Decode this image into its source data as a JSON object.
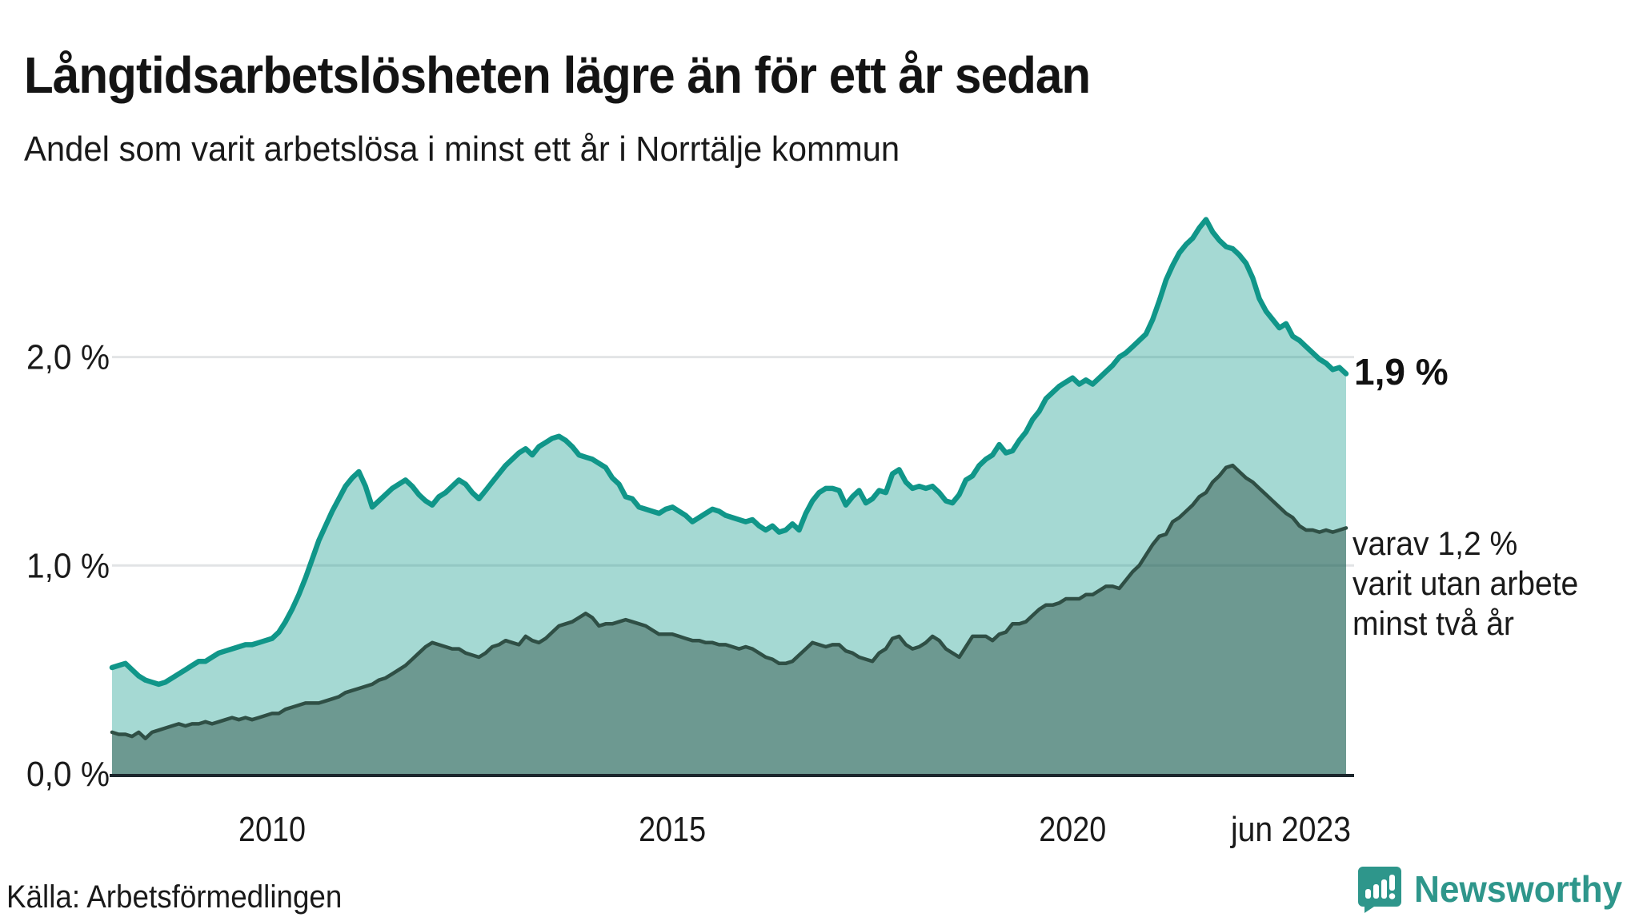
{
  "header": {
    "title": "Långtidsarbetslösheten lägre än för ett år sedan",
    "subtitle": "Andel som varit arbetslösa i minst ett år i Norrtälje kommun"
  },
  "footer": {
    "source": "Källa: Arbetsförmedlingen",
    "brand": "Newsworthy"
  },
  "colors": {
    "series_total_line": "#109689",
    "series_total_fill": "rgba(18,154,140,0.38)",
    "series_two_year_line": "#2f4f45",
    "series_two_year_fill": "rgba(30,64,54,0.42)",
    "grid_line": "#e2e4e6",
    "axis_line": "#1c262c",
    "brand_teal": "#2e968b",
    "text": "#1a1a1a"
  },
  "chart_data": {
    "type": "area",
    "title": "Långtidsarbetslösheten lägre än för ett år sedan",
    "subtitle": "Andel som varit arbetslösa i minst ett år i Norrtälje kommun",
    "unit": "%",
    "x_start": "2008-01",
    "x_end": "2023-06",
    "x_interval": "monthly",
    "ylim": [
      0,
      2.9
    ],
    "grid": "horizontal",
    "legend_position": "none",
    "y_ticks": [
      {
        "value": 0,
        "label": "0,0 %"
      },
      {
        "value": 1,
        "label": "1,0 %"
      },
      {
        "value": 2,
        "label": "2,0 %"
      }
    ],
    "x_ticks": [
      {
        "index": 24,
        "label": "2010",
        "align": "middle"
      },
      {
        "index": 84,
        "label": "2015",
        "align": "middle"
      },
      {
        "index": 144,
        "label": "2020",
        "align": "middle"
      },
      {
        "index": 185,
        "label": "jun 2023",
        "align": "end"
      }
    ],
    "annotations": {
      "latest_total": "1,9 %",
      "latest_secondary_lines": [
        "varav 1,2 %",
        "varit utan arbete",
        "minst två år"
      ]
    },
    "series": [
      {
        "name": "Andel arbetslösa minst ett år",
        "line_color": "#109689",
        "fill_color": "rgba(18,154,140,0.38)",
        "line_width": 6.5,
        "values": [
          0.51,
          0.52,
          0.53,
          0.5,
          0.47,
          0.45,
          0.44,
          0.43,
          0.44,
          0.46,
          0.48,
          0.5,
          0.52,
          0.54,
          0.54,
          0.56,
          0.58,
          0.59,
          0.6,
          0.61,
          0.62,
          0.62,
          0.63,
          0.64,
          0.65,
          0.68,
          0.73,
          0.79,
          0.86,
          0.94,
          1.03,
          1.12,
          1.19,
          1.26,
          1.32,
          1.38,
          1.42,
          1.45,
          1.38,
          1.28,
          1.31,
          1.34,
          1.37,
          1.39,
          1.41,
          1.38,
          1.34,
          1.31,
          1.29,
          1.33,
          1.35,
          1.38,
          1.41,
          1.39,
          1.35,
          1.32,
          1.36,
          1.4,
          1.44,
          1.48,
          1.51,
          1.54,
          1.56,
          1.53,
          1.57,
          1.59,
          1.61,
          1.62,
          1.6,
          1.57,
          1.53,
          1.52,
          1.51,
          1.49,
          1.47,
          1.42,
          1.39,
          1.33,
          1.32,
          1.28,
          1.27,
          1.26,
          1.25,
          1.27,
          1.28,
          1.26,
          1.24,
          1.21,
          1.23,
          1.25,
          1.27,
          1.26,
          1.24,
          1.23,
          1.22,
          1.21,
          1.22,
          1.19,
          1.17,
          1.19,
          1.16,
          1.17,
          1.2,
          1.17,
          1.25,
          1.31,
          1.35,
          1.37,
          1.37,
          1.36,
          1.29,
          1.33,
          1.36,
          1.3,
          1.32,
          1.36,
          1.35,
          1.44,
          1.46,
          1.4,
          1.37,
          1.38,
          1.37,
          1.38,
          1.35,
          1.31,
          1.3,
          1.34,
          1.41,
          1.43,
          1.48,
          1.51,
          1.53,
          1.58,
          1.54,
          1.55,
          1.6,
          1.64,
          1.7,
          1.74,
          1.8,
          1.83,
          1.86,
          1.88,
          1.9,
          1.87,
          1.89,
          1.87,
          1.9,
          1.93,
          1.96,
          2.0,
          2.02,
          2.05,
          2.08,
          2.11,
          2.18,
          2.27,
          2.37,
          2.44,
          2.5,
          2.54,
          2.57,
          2.62,
          2.66,
          2.6,
          2.56,
          2.53,
          2.52,
          2.49,
          2.45,
          2.38,
          2.28,
          2.22,
          2.18,
          2.14,
          2.16,
          2.1,
          2.08,
          2.05,
          2.02,
          1.99,
          1.97,
          1.94,
          1.95,
          1.92
        ]
      },
      {
        "name": "varav utan arbete minst två år",
        "line_color": "#2f4f45",
        "fill_color": "rgba(30,64,54,0.42)",
        "line_width": 4.5,
        "values": [
          0.2,
          0.19,
          0.19,
          0.18,
          0.2,
          0.17,
          0.2,
          0.21,
          0.22,
          0.23,
          0.24,
          0.23,
          0.24,
          0.24,
          0.25,
          0.24,
          0.25,
          0.26,
          0.27,
          0.26,
          0.27,
          0.26,
          0.27,
          0.28,
          0.29,
          0.29,
          0.31,
          0.32,
          0.33,
          0.34,
          0.34,
          0.34,
          0.35,
          0.36,
          0.37,
          0.39,
          0.4,
          0.41,
          0.42,
          0.43,
          0.45,
          0.46,
          0.48,
          0.5,
          0.52,
          0.55,
          0.58,
          0.61,
          0.63,
          0.62,
          0.61,
          0.6,
          0.6,
          0.58,
          0.57,
          0.56,
          0.58,
          0.61,
          0.62,
          0.64,
          0.63,
          0.62,
          0.66,
          0.64,
          0.63,
          0.65,
          0.68,
          0.71,
          0.72,
          0.73,
          0.75,
          0.77,
          0.75,
          0.71,
          0.72,
          0.72,
          0.73,
          0.74,
          0.73,
          0.72,
          0.71,
          0.69,
          0.67,
          0.67,
          0.67,
          0.66,
          0.65,
          0.64,
          0.64,
          0.63,
          0.63,
          0.62,
          0.62,
          0.61,
          0.6,
          0.61,
          0.6,
          0.58,
          0.56,
          0.55,
          0.53,
          0.53,
          0.54,
          0.57,
          0.6,
          0.63,
          0.62,
          0.61,
          0.62,
          0.62,
          0.59,
          0.58,
          0.56,
          0.55,
          0.54,
          0.58,
          0.6,
          0.65,
          0.66,
          0.62,
          0.6,
          0.61,
          0.63,
          0.66,
          0.64,
          0.6,
          0.58,
          0.56,
          0.61,
          0.66,
          0.66,
          0.66,
          0.64,
          0.67,
          0.68,
          0.72,
          0.72,
          0.73,
          0.76,
          0.79,
          0.81,
          0.81,
          0.82,
          0.84,
          0.84,
          0.84,
          0.86,
          0.86,
          0.88,
          0.9,
          0.9,
          0.89,
          0.93,
          0.97,
          1.0,
          1.05,
          1.1,
          1.14,
          1.15,
          1.21,
          1.23,
          1.26,
          1.29,
          1.33,
          1.35,
          1.4,
          1.43,
          1.47,
          1.48,
          1.45,
          1.42,
          1.4,
          1.37,
          1.34,
          1.31,
          1.28,
          1.25,
          1.23,
          1.19,
          1.17,
          1.17,
          1.16,
          1.17,
          1.16,
          1.17,
          1.18
        ]
      }
    ]
  }
}
